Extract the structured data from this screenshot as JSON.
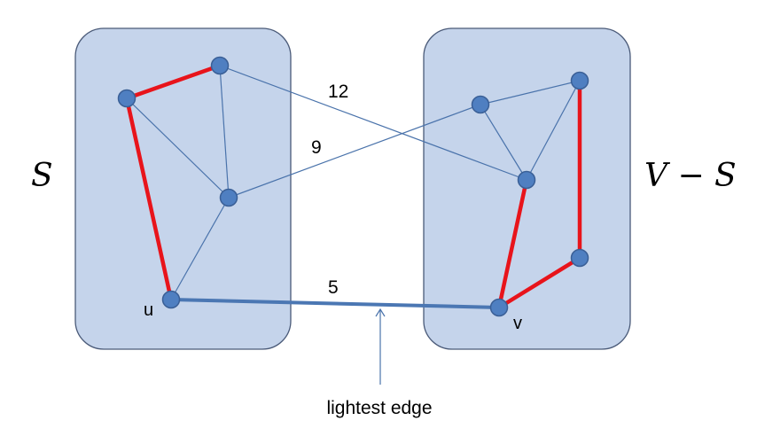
{
  "labels": {
    "set_s": "S",
    "set_v_minus_s": "V − S",
    "node_u": "u",
    "node_v": "v",
    "caption": "lightest edge"
  },
  "weights": {
    "w12": "12",
    "w9": "9",
    "w5": "5"
  },
  "colors": {
    "region_fill": "#c5d4eb",
    "node": "#4f7fc1",
    "mst_edge": "#e8141b",
    "light_edge": "#4b77b3",
    "thin_edge": "#4a73ab"
  }
}
